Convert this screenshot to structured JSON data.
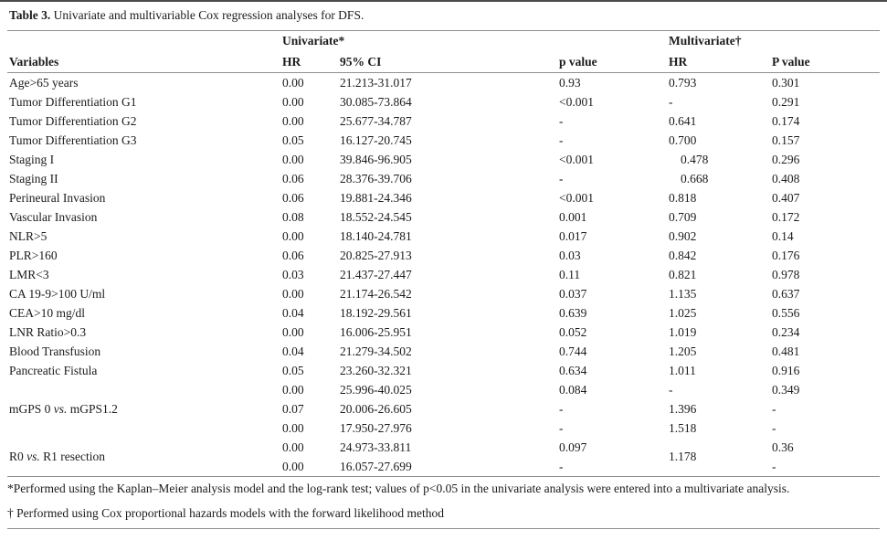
{
  "title": {
    "label": "Table 3.",
    "text": " Univariate and multivariable Cox regression analyses for DFS."
  },
  "table": {
    "group_headers": {
      "univariate": "Univariate*",
      "multivariate": "Multivariate†"
    },
    "columns": {
      "variables": "Variables",
      "uni_hr": "HR",
      "ci": "95% CI",
      "p": "p value",
      "multi_hr": "HR",
      "P": "P value"
    },
    "rows": [
      {
        "v": "Age>65 years",
        "uni_hr": "0.00",
        "ci": "21.213-31.017",
        "p": "0.93",
        "m_hr": "0.793",
        "P": "0.301"
      },
      {
        "v": "Tumor Differentiation G1",
        "uni_hr": "0.00",
        "ci": "30.085-73.864",
        "p": "<0.001",
        "m_hr": "-",
        "P": "0.291"
      },
      {
        "v": "Tumor Differentiation G2",
        "uni_hr": "0.00",
        "ci": "25.677-34.787",
        "p": "-",
        "m_hr": "0.641",
        "P": "0.174"
      },
      {
        "v": "Tumor Differentiation G3",
        "uni_hr": "0.05",
        "ci": "16.127-20.745",
        "p": "-",
        "m_hr": "0.700",
        "P": "0.157"
      },
      {
        "v": "Staging I",
        "uni_hr": "0.00",
        "ci": "39.846-96.905",
        "p": "<0.001",
        "m_hr": "0.478",
        "P": "0.296"
      },
      {
        "v": "Staging II",
        "uni_hr": "0.06",
        "ci": "28.376-39.706",
        "p": "-",
        "m_hr": "0.668",
        "P": "0.408"
      },
      {
        "v": "Perineural Invasion",
        "uni_hr": "0.06",
        "ci": "19.881-24.346",
        "p": "<0.001",
        "m_hr": "0.818",
        "P": "0.407"
      },
      {
        "v": "Vascular Invasion",
        "uni_hr": "0.08",
        "ci": "18.552-24.545",
        "p": "0.001",
        "m_hr": "0.709",
        "P": "0.172"
      },
      {
        "v": "NLR>5",
        "uni_hr": "0.00",
        "ci": "18.140-24.781",
        "p": "0.017",
        "m_hr": "0.902",
        "P": "0.14"
      },
      {
        "v": "PLR>160",
        "uni_hr": "0.06",
        "ci": "20.825-27.913",
        "p": "0.03",
        "m_hr": "0.842",
        "P": "0.176"
      },
      {
        "v": "LMR<3",
        "uni_hr": "0.03",
        "ci": "21.437-27.447",
        "p": "0.11",
        "m_hr": "0.821",
        "P": "0.978"
      },
      {
        "v": "CA 19-9>100 U/ml",
        "uni_hr": "0.00",
        "ci": "21.174-26.542",
        "p": "0.037",
        "m_hr": "1.135",
        "P": "0.637"
      },
      {
        "v": "CEA>10 mg/dl",
        "uni_hr": "0.04",
        "ci": "18.192-29.561",
        "p": "0.639",
        "m_hr": "1.025",
        "P": "0.556"
      },
      {
        "v": "LNR Ratio>0.3",
        "uni_hr": "0.00",
        "ci": "16.006-25.951",
        "p": "0.052",
        "m_hr": "1.019",
        "P": "0.234"
      },
      {
        "v": "Blood Transfusion",
        "uni_hr": "0.04",
        "ci": "21.279-34.502",
        "p": "0.744",
        "m_hr": "1.205",
        "P": "0.481"
      },
      {
        "v": "Pancreatic Fistula",
        "uni_hr": "0.05",
        "ci": "23.260-32.321",
        "p": "0.634",
        "m_hr": "1.011",
        "P": "0.916"
      },
      {
        "v": "",
        "uni_hr": "0.00",
        "ci": "25.996-40.025",
        "p": "0.084",
        "m_hr": "-",
        "P": "0.349"
      },
      {
        "v_pre": "mGPS 0 ",
        "v_vs": "vs.",
        "v_post": " mGPS1.2",
        "uni_hr": "0.07",
        "ci": "20.006-26.605",
        "p": "-",
        "m_hr": "1.396",
        "P": "-"
      },
      {
        "v": "",
        "uni_hr": "0.00",
        "ci": "17.950-27.976",
        "p": "-",
        "m_hr": "1.518",
        "P": "-"
      },
      {
        "v_pre": "R0 ",
        "v_vs": "vs.",
        "v_post": " R1 resection",
        "uni_hr": "0.00",
        "ci": "24.973-33.811",
        "p": "0.097",
        "m_hr": "1.178",
        "P": "0.36"
      },
      {
        "uni_hr": "0.00",
        "ci": "16.057-27.699",
        "p": "-",
        "P": "-"
      }
    ]
  },
  "footnotes": {
    "first": "*Performed using the Kaplan–Meier analysis model and the log-rank test; values of p<0.05 in the univariate analysis were entered into a multivariate analysis.",
    "second": "† Performed using Cox proportional hazards models with the forward likelihood method"
  }
}
